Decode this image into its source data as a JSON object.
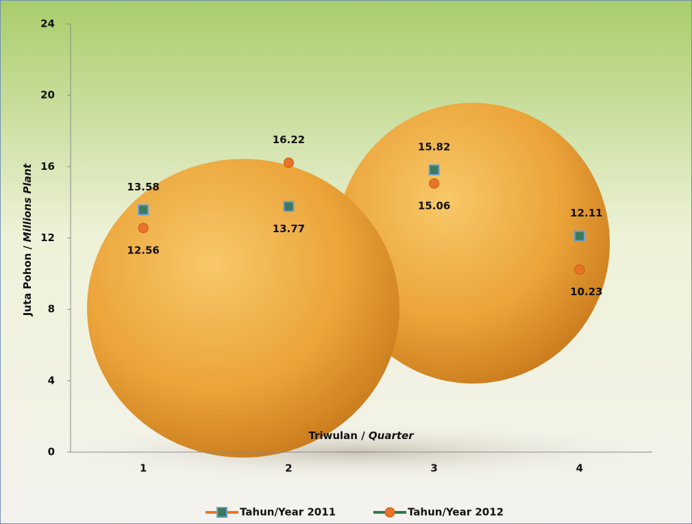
{
  "chart_data": {
    "type": "line",
    "ylabel": [
      "Juta Pohon / ",
      "Millions Plant"
    ],
    "xlabel": [
      "Triwulan / ",
      "Quarter"
    ],
    "categories": [
      "1",
      "2",
      "3",
      "4"
    ],
    "series": [
      {
        "name": "Tahun/Year 2011",
        "color": "#e87722",
        "marker": "square",
        "marker_color": "#3d7a5c",
        "values": [
          13.58,
          13.77,
          15.82,
          12.11
        ]
      },
      {
        "name": "Tahun/Year 2012",
        "color": "#2b7a4b",
        "marker": "circle",
        "marker_color": "#e8742a",
        "values": [
          12.56,
          16.22,
          15.06,
          10.23
        ]
      }
    ],
    "ylim": [
      0,
      24
    ],
    "yticks": [
      0,
      4,
      8,
      12,
      16,
      20,
      24
    ],
    "grid": false,
    "legend": "bottom"
  }
}
